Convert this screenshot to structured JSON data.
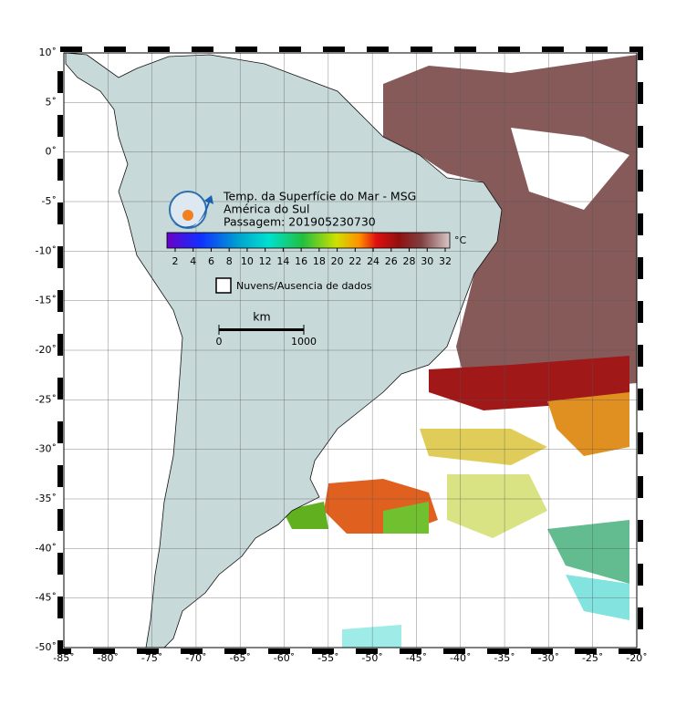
{
  "map": {
    "title": "Temp. da Superfície do Mar - MSG",
    "subtitle": "América do Sul",
    "pass": "Passagem: 201905230730",
    "colorbar": {
      "ticks": [
        2,
        4,
        6,
        8,
        10,
        12,
        14,
        16,
        18,
        20,
        22,
        24,
        26,
        28,
        30,
        32
      ],
      "unit": "°C"
    },
    "legend": "Nuvens/Ausencia de dados",
    "scale": {
      "unit": "km",
      "ticks": [
        0,
        1000
      ]
    },
    "xticks": [
      {
        "value": -85,
        "label": "-85˚"
      },
      {
        "value": -80,
        "label": "-80˚"
      },
      {
        "value": -75,
        "label": "-75˚"
      },
      {
        "value": -70,
        "label": "-70˚"
      },
      {
        "value": -65,
        "label": "-65˚"
      },
      {
        "value": -60,
        "label": "-60˚"
      },
      {
        "value": -55,
        "label": "-55˚"
      },
      {
        "value": -50,
        "label": "-50˚"
      },
      {
        "value": -45,
        "label": "-45˚"
      },
      {
        "value": -40,
        "label": "-40˚"
      },
      {
        "value": -35,
        "label": "-35˚"
      },
      {
        "value": -30,
        "label": "-30˚"
      },
      {
        "value": -25,
        "label": "-25˚"
      },
      {
        "value": -20,
        "label": "-20˚"
      }
    ],
    "yticks": [
      {
        "value": 10,
        "label": "10˚"
      },
      {
        "value": 5,
        "label": "5˚"
      },
      {
        "value": 0,
        "label": "0˚"
      },
      {
        "value": -5,
        "label": "-5˚"
      },
      {
        "value": -10,
        "label": "-10˚"
      },
      {
        "value": -15,
        "label": "-15˚"
      },
      {
        "value": -20,
        "label": "-20˚"
      },
      {
        "value": -25,
        "label": "-25˚"
      },
      {
        "value": -30,
        "label": "-30˚"
      },
      {
        "value": -35,
        "label": "-35˚"
      },
      {
        "value": -40,
        "label": "-40˚"
      },
      {
        "value": -45,
        "label": "-45˚"
      },
      {
        "value": -50,
        "label": "-50˚"
      }
    ]
  }
}
